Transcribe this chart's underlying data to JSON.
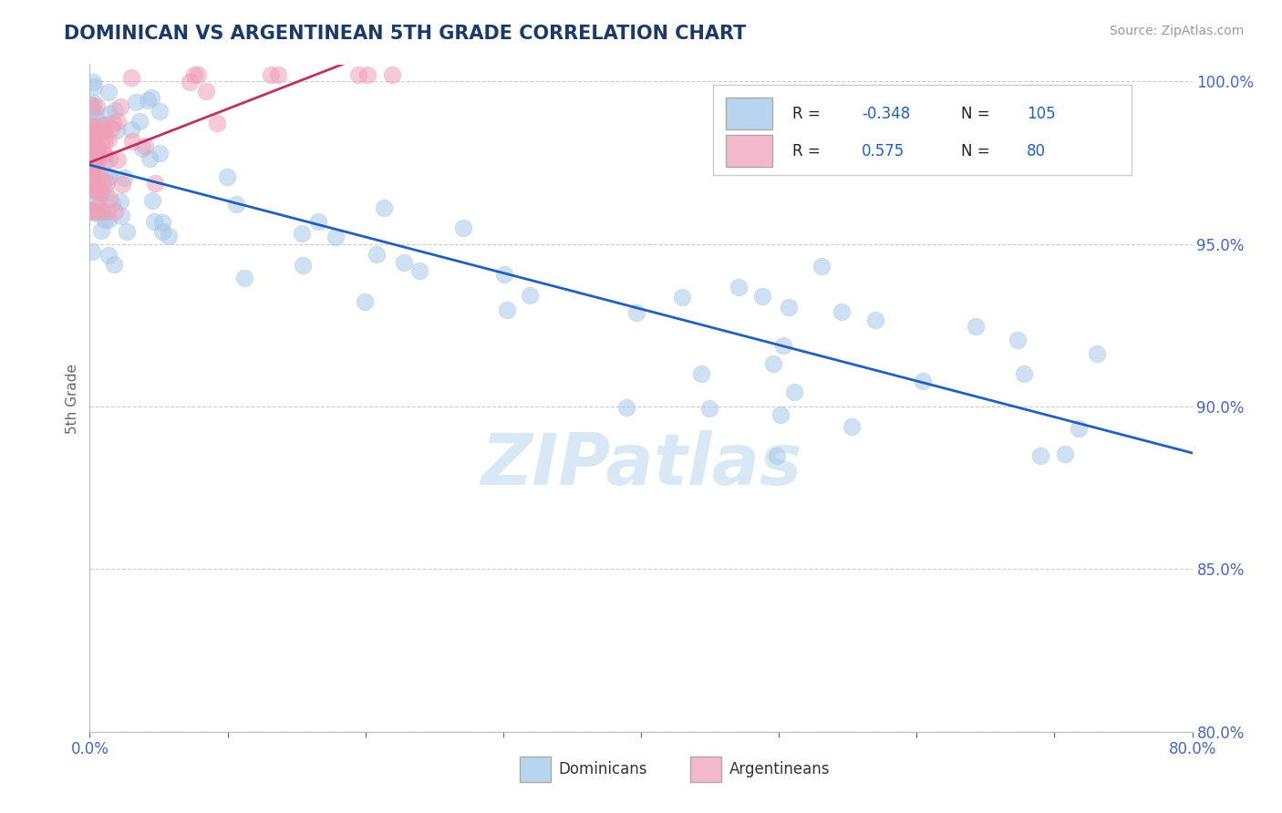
{
  "title": "DOMINICAN VS ARGENTINEAN 5TH GRADE CORRELATION CHART",
  "source": "Source: ZipAtlas.com",
  "ylabel": "5th Grade",
  "blue_R": -0.348,
  "blue_N": 105,
  "pink_R": 0.575,
  "pink_N": 80,
  "blue_color": "#a8c8e8",
  "pink_color": "#f0a0b8",
  "blue_line_color": "#2060c0",
  "pink_line_color": "#c03060",
  "x_min": 0.0,
  "x_max": 0.8,
  "y_min": 0.8,
  "y_max": 1.005,
  "grid_color": "#cccccc",
  "background_color": "#ffffff",
  "watermark": "ZIPatlas",
  "watermark_color": "#d8e8f5",
  "title_color": "#1a3a6b",
  "axis_label_color": "#666666",
  "tick_color": "#4466cc",
  "legend_box_color_blue": "#b8d4ee",
  "legend_box_color_pink": "#f4b8cc"
}
